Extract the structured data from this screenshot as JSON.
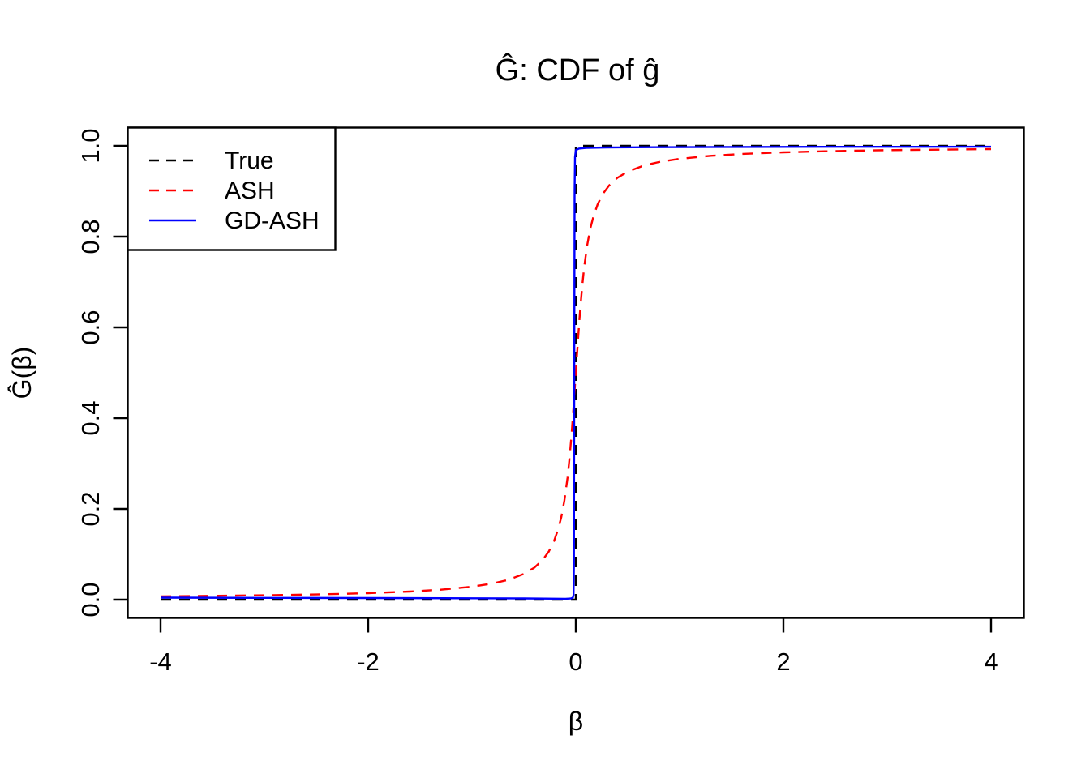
{
  "chart_data": {
    "type": "line",
    "title": "Ĝ: CDF of ĝ",
    "xlabel": "β",
    "ylabel": "Ĝ(β)",
    "xlim": [
      -4.32,
      4.32
    ],
    "ylim": [
      -0.04,
      1.04
    ],
    "grid": false,
    "legend_position": "topleft",
    "xticks": {
      "values": [
        -4,
        -2,
        0,
        2,
        4
      ],
      "labels": [
        "-4",
        "-2",
        "0",
        "2",
        "4"
      ]
    },
    "yticks": {
      "values": [
        0.0,
        0.2,
        0.4,
        0.6,
        0.8,
        1.0
      ],
      "labels": [
        "0.0",
        "0.2",
        "0.4",
        "0.6",
        "0.8",
        "1.0"
      ]
    },
    "colors": {
      "axis": "#000000",
      "background": "#ffffff"
    },
    "series": [
      {
        "name": "True",
        "color": "#000000",
        "style": "dashed",
        "points": [
          [
            -4,
            0
          ],
          [
            0,
            0
          ],
          [
            0,
            1
          ],
          [
            4,
            1
          ]
        ]
      },
      {
        "name": "ASH",
        "color": "#ff0000",
        "style": "dashed",
        "points": [
          [
            -4,
            0.0072
          ],
          [
            -3,
            0.0096
          ],
          [
            -2.5,
            0.0115
          ],
          [
            -2,
            0.0143
          ],
          [
            -1.6,
            0.0179
          ],
          [
            -1.3,
            0.022
          ],
          [
            -1,
            0.0286
          ],
          [
            -0.8,
            0.0357
          ],
          [
            -0.65,
            0.0438
          ],
          [
            -0.5,
            0.0567
          ],
          [
            -0.4,
            0.0705
          ],
          [
            -0.32,
            0.0873
          ],
          [
            -0.26,
            0.106
          ],
          [
            -0.21,
            0.1289
          ],
          [
            -0.17,
            0.1551
          ],
          [
            -0.14,
            0.1818
          ],
          [
            -0.11,
            0.2183
          ],
          [
            -0.08,
            0.2687
          ],
          [
            -0.06,
            0.3128
          ],
          [
            -0.04,
            0.3669
          ],
          [
            -0.02,
            0.4304
          ],
          [
            0,
            0.5
          ],
          [
            0.02,
            0.5696
          ],
          [
            0.04,
            0.6331
          ],
          [
            0.06,
            0.6872
          ],
          [
            0.08,
            0.7313
          ],
          [
            0.11,
            0.7817
          ],
          [
            0.14,
            0.8182
          ],
          [
            0.17,
            0.8449
          ],
          [
            0.21,
            0.8711
          ],
          [
            0.26,
            0.894
          ],
          [
            0.32,
            0.9127
          ],
          [
            0.4,
            0.9295
          ],
          [
            0.5,
            0.9433
          ],
          [
            0.65,
            0.9562
          ],
          [
            0.8,
            0.9643
          ],
          [
            1,
            0.9714
          ],
          [
            1.3,
            0.978
          ],
          [
            1.6,
            0.9821
          ],
          [
            2,
            0.9857
          ],
          [
            2.5,
            0.9885
          ],
          [
            3,
            0.9905
          ],
          [
            4,
            0.9928
          ]
        ]
      },
      {
        "name": "GD-ASH",
        "color": "#0000ff",
        "style": "solid",
        "points": [
          [
            -4,
            0.0045
          ],
          [
            -3,
            0.004
          ],
          [
            -2,
            0.0035
          ],
          [
            -1,
            0.003
          ],
          [
            -0.5,
            0.0027
          ],
          [
            -0.2,
            0.0022
          ],
          [
            -0.1,
            0.002
          ],
          [
            -0.05,
            0.0025
          ],
          [
            -0.03,
            0.004
          ],
          [
            -0.022,
            0.01
          ],
          [
            -0.018,
            0.08
          ],
          [
            -0.015,
            0.5
          ],
          [
            -0.012,
            0.9
          ],
          [
            -0.008,
            0.975
          ],
          [
            0,
            0.9905
          ],
          [
            0.03,
            0.994
          ],
          [
            0.1,
            0.9955
          ],
          [
            0.3,
            0.9965
          ],
          [
            0.7,
            0.997
          ],
          [
            1.5,
            0.9975
          ],
          [
            2.5,
            0.9978
          ],
          [
            4,
            0.998
          ]
        ]
      }
    ]
  }
}
